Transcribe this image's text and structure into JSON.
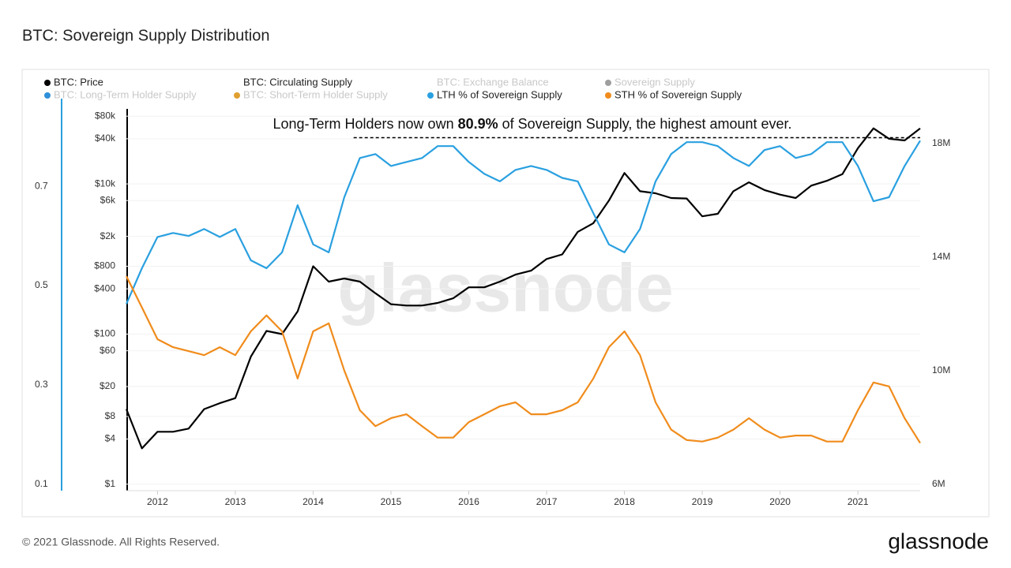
{
  "chart_data": {
    "type": "line",
    "title": "BTC: Sovereign Supply Distribution",
    "annotation": {
      "before": "Long-Term Holders now own ",
      "bold": "80.9%",
      "after": " of Sovereign Supply, the highest amount ever."
    },
    "reference_line": {
      "value": 0.798,
      "x_start": 2014.52
    },
    "watermark": "glassnode",
    "footer": "© 2021 Glassnode. All Rights Reserved.",
    "logo": "glassnode",
    "xlim": [
      2011.6,
      2021.8
    ],
    "xticks": [
      2012,
      2013,
      2014,
      2015,
      2016,
      2017,
      2018,
      2019,
      2020,
      2021
    ],
    "ylim": [
      0.087,
      0.856
    ],
    "yticks": [
      0.1,
      0.3,
      0.5,
      0.7
    ],
    "y2lim": [
      5780000,
      19220000
    ],
    "y2ticks": [
      {
        "value": 6000000,
        "label": "6M"
      },
      {
        "value": 10000000,
        "label": "10M"
      },
      {
        "value": 14000000,
        "label": "14M"
      },
      {
        "value": 18000000,
        "label": "18M"
      }
    ],
    "y3lim": [
      0.82,
      100000
    ],
    "y3_log": true,
    "y3ticks": [
      {
        "value": 1,
        "label": "$1"
      },
      {
        "value": 4,
        "label": "$4"
      },
      {
        "value": 8,
        "label": "$8"
      },
      {
        "value": 20,
        "label": "$20"
      },
      {
        "value": 60,
        "label": "$60"
      },
      {
        "value": 100,
        "label": "$100"
      },
      {
        "value": 400,
        "label": "$400"
      },
      {
        "value": 800,
        "label": "$800"
      },
      {
        "value": 2000,
        "label": "$2k"
      },
      {
        "value": 6000,
        "label": "$6k"
      },
      {
        "value": 10000,
        "label": "$10k"
      },
      {
        "value": 40000,
        "label": "$40k"
      },
      {
        "value": 80000,
        "label": "$80k"
      }
    ],
    "grid": true,
    "x": [
      2011.6,
      2011.8,
      2012.0,
      2012.2,
      2012.4,
      2012.6,
      2012.8,
      2013.0,
      2013.2,
      2013.4,
      2013.6,
      2013.8,
      2014.0,
      2014.2,
      2014.4,
      2014.6,
      2014.8,
      2015.0,
      2015.2,
      2015.4,
      2015.6,
      2015.8,
      2016.0,
      2016.2,
      2016.4,
      2016.6,
      2016.8,
      2017.0,
      2017.2,
      2017.4,
      2017.6,
      2017.8,
      2018.0,
      2018.2,
      2018.4,
      2018.6,
      2018.8,
      2019.0,
      2019.2,
      2019.4,
      2019.6,
      2019.8,
      2020.0,
      2020.2,
      2020.4,
      2020.6,
      2020.8,
      2021.0,
      2021.2,
      2021.4,
      2021.6,
      2021.8
    ],
    "series": [
      {
        "name": "BTC: Price",
        "color": "#000000",
        "visible": true,
        "axis": "y3",
        "values": [
          10,
          3,
          5,
          5,
          5.5,
          10,
          12,
          14,
          50,
          110,
          100,
          200,
          800,
          500,
          550,
          500,
          350,
          250,
          240,
          240,
          260,
          300,
          420,
          420,
          500,
          620,
          700,
          1000,
          1150,
          2300,
          3000,
          6000,
          14000,
          8000,
          7500,
          6500,
          6400,
          3700,
          4000,
          8000,
          10500,
          8300,
          7200,
          6500,
          9500,
          11000,
          13500,
          30000,
          55000,
          40000,
          38000,
          55000
        ]
      },
      {
        "name": "BTC: Circulating Supply",
        "visible": true,
        "axis": "y2"
      },
      {
        "name": "BTC: Exchange Balance",
        "visible": false,
        "axis": "y2"
      },
      {
        "name": "Sovereign Supply",
        "color": "#9e9e9e",
        "visible": false,
        "axis": "y2"
      },
      {
        "name": "BTC: Long-Term Holder Supply",
        "color": "#2f8fd8",
        "visible": false,
        "axis": "y2"
      },
      {
        "name": "BTC: Short-Term Holder Supply",
        "color": "#e0a030",
        "visible": false,
        "axis": "y2"
      },
      {
        "name": "LTH % of Sovereign Supply",
        "color": "#2aa0e0",
        "visible": true,
        "axis": "y",
        "values": [
          0.463,
          0.535,
          0.598,
          0.606,
          0.6,
          0.614,
          0.598,
          0.614,
          0.551,
          0.535,
          0.567,
          0.662,
          0.583,
          0.567,
          0.678,
          0.757,
          0.765,
          0.741,
          0.749,
          0.757,
          0.781,
          0.781,
          0.749,
          0.725,
          0.71,
          0.733,
          0.741,
          0.733,
          0.717,
          0.71,
          0.646,
          0.583,
          0.567,
          0.614,
          0.71,
          0.765,
          0.789,
          0.789,
          0.781,
          0.757,
          0.741,
          0.773,
          0.781,
          0.757,
          0.765,
          0.789,
          0.789,
          0.741,
          0.67,
          0.678,
          0.741,
          0.792
        ]
      },
      {
        "name": "STH % of Sovereign Supply",
        "color": "#f08c1c",
        "visible": true,
        "axis": "y",
        "values": [
          0.519,
          0.456,
          0.392,
          0.376,
          0.368,
          0.36,
          0.376,
          0.36,
          0.408,
          0.44,
          0.408,
          0.313,
          0.408,
          0.424,
          0.329,
          0.249,
          0.217,
          0.233,
          0.241,
          0.217,
          0.194,
          0.194,
          0.225,
          0.241,
          0.257,
          0.265,
          0.241,
          0.241,
          0.249,
          0.265,
          0.313,
          0.376,
          0.408,
          0.36,
          0.265,
          0.21,
          0.189,
          0.186,
          0.194,
          0.21,
          0.233,
          0.21,
          0.194,
          0.198,
          0.198,
          0.186,
          0.186,
          0.249,
          0.305,
          0.297,
          0.233,
          0.183
        ]
      }
    ]
  }
}
